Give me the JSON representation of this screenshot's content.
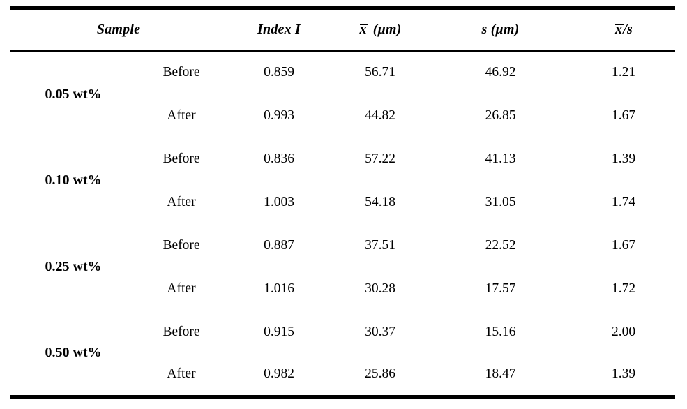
{
  "table": {
    "header": {
      "sample": "Sample",
      "index": "Index I",
      "xbar_symbol": "x",
      "xbar_unit": "(μm)",
      "s": "s (μm)",
      "ratio_symbol": "x",
      "ratio_rest": "/s"
    },
    "groups": [
      {
        "sample": "0.05 wt%",
        "rows": [
          {
            "condition": "Before",
            "index_i": "0.859",
            "xbar_um": "56.71",
            "s_um": "46.92",
            "xbar_over_s": "1.21"
          },
          {
            "condition": "After",
            "index_i": "0.993",
            "xbar_um": "44.82",
            "s_um": "26.85",
            "xbar_over_s": "1.67"
          }
        ]
      },
      {
        "sample": "0.10 wt%",
        "rows": [
          {
            "condition": "Before",
            "index_i": "0.836",
            "xbar_um": "57.22",
            "s_um": "41.13",
            "xbar_over_s": "1.39"
          },
          {
            "condition": "After",
            "index_i": "1.003",
            "xbar_um": "54.18",
            "s_um": "31.05",
            "xbar_over_s": "1.74"
          }
        ]
      },
      {
        "sample": "0.25 wt%",
        "rows": [
          {
            "condition": "Before",
            "index_i": "0.887",
            "xbar_um": "37.51",
            "s_um": "22.52",
            "xbar_over_s": "1.67"
          },
          {
            "condition": "After",
            "index_i": "1.016",
            "xbar_um": "30.28",
            "s_um": "17.57",
            "xbar_over_s": "1.72"
          }
        ]
      },
      {
        "sample": "0.50 wt%",
        "rows": [
          {
            "condition": "Before",
            "index_i": "0.915",
            "xbar_um": "30.37",
            "s_um": "15.16",
            "xbar_over_s": "2.00"
          },
          {
            "condition": "After",
            "index_i": "0.982",
            "xbar_um": "25.86",
            "s_um": "18.47",
            "xbar_over_s": "1.39"
          }
        ]
      }
    ]
  }
}
